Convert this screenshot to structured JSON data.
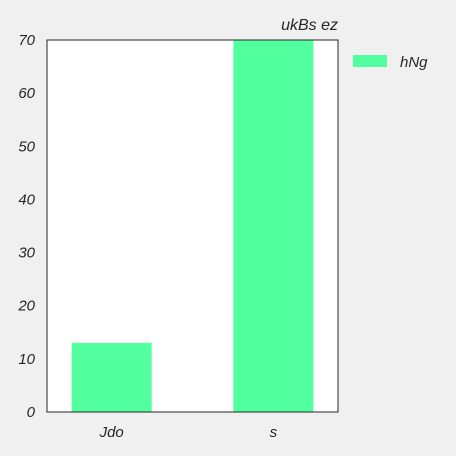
{
  "chart_data": {
    "type": "bar",
    "title": "ukBs ez",
    "xlabel": "",
    "ylabel": "",
    "categories": [
      "Jdo",
      "s"
    ],
    "series": [
      {
        "name": "hNg",
        "values": [
          13,
          70
        ],
        "color": "#52ff9f"
      }
    ],
    "ylim": [
      0,
      70
    ],
    "yticks": [
      0,
      10,
      20,
      30,
      40,
      50,
      60,
      70
    ],
    "grid": false,
    "legend_position": "outside-right-top"
  }
}
